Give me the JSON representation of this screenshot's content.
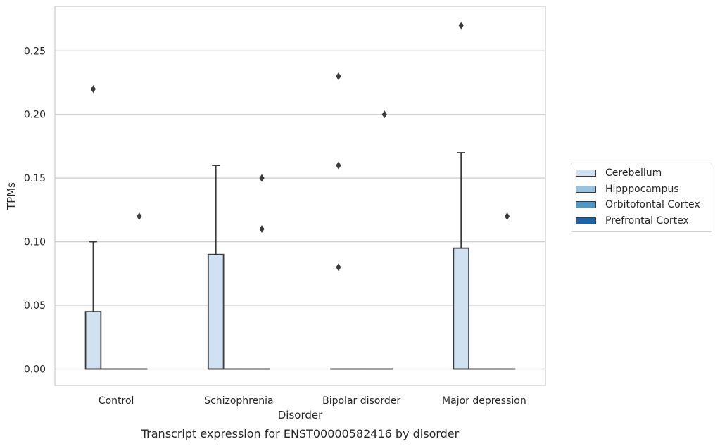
{
  "chart_data": {
    "type": "box",
    "title": "",
    "caption": "Transcript expression for ENST00000582416 by disorder",
    "xlabel": "Disorder",
    "ylabel": "TPMs",
    "ylim": [
      -0.013,
      0.285
    ],
    "yticks": [
      "0.00",
      "0.05",
      "0.10",
      "0.15",
      "0.20",
      "0.25"
    ],
    "categories": [
      "Control",
      "Schizophrenia",
      "Bipolar disorder",
      "Major depression"
    ],
    "grid": true,
    "legend_position": "right",
    "series": [
      {
        "name": "Cerebellum",
        "color": "#d0e1f2",
        "boxes": [
          {
            "q1": 0.0,
            "median": 0.0,
            "q3": 0.045,
            "whisker_low": 0.0,
            "whisker_high": 0.1,
            "outliers": [
              0.22
            ]
          },
          {
            "q1": 0.0,
            "median": 0.0,
            "q3": 0.09,
            "whisker_low": 0.0,
            "whisker_high": 0.16,
            "outliers": []
          },
          {
            "q1": 0.0,
            "median": 0.0,
            "q3": 0.0,
            "whisker_low": 0.0,
            "whisker_high": 0.0,
            "outliers": [
              0.08,
              0.16,
              0.23
            ]
          },
          {
            "q1": 0.0,
            "median": 0.0,
            "q3": 0.095,
            "whisker_low": 0.0,
            "whisker_high": 0.17,
            "outliers": [
              0.27
            ]
          }
        ]
      },
      {
        "name": "Hipppocampus",
        "color": "#94c4df",
        "boxes": [
          {
            "q1": 0.0,
            "median": 0.0,
            "q3": 0.0,
            "whisker_low": 0.0,
            "whisker_high": 0.0,
            "outliers": []
          },
          {
            "q1": 0.0,
            "median": 0.0,
            "q3": 0.0,
            "whisker_low": 0.0,
            "whisker_high": 0.0,
            "outliers": []
          },
          {
            "q1": 0.0,
            "median": 0.0,
            "q3": 0.0,
            "whisker_low": 0.0,
            "whisker_high": 0.0,
            "outliers": []
          },
          {
            "q1": 0.0,
            "median": 0.0,
            "q3": 0.0,
            "whisker_low": 0.0,
            "whisker_high": 0.0,
            "outliers": []
          }
        ]
      },
      {
        "name": "Orbitofontal Cortex",
        "color": "#4a98c9",
        "boxes": [
          {
            "q1": 0.0,
            "median": 0.0,
            "q3": 0.0,
            "whisker_low": 0.0,
            "whisker_high": 0.0,
            "outliers": []
          },
          {
            "q1": 0.0,
            "median": 0.0,
            "q3": 0.0,
            "whisker_low": 0.0,
            "whisker_high": 0.0,
            "outliers": []
          },
          {
            "q1": 0.0,
            "median": 0.0,
            "q3": 0.0,
            "whisker_low": 0.0,
            "whisker_high": 0.0,
            "outliers": []
          },
          {
            "q1": 0.0,
            "median": 0.0,
            "q3": 0.0,
            "whisker_low": 0.0,
            "whisker_high": 0.0,
            "outliers": []
          }
        ]
      },
      {
        "name": "Prefrontal Cortex",
        "color": "#1764ab",
        "boxes": [
          {
            "q1": 0.0,
            "median": 0.0,
            "q3": 0.0,
            "whisker_low": 0.0,
            "whisker_high": 0.0,
            "outliers": [
              0.12
            ]
          },
          {
            "q1": 0.0,
            "median": 0.0,
            "q3": 0.0,
            "whisker_low": 0.0,
            "whisker_high": 0.0,
            "outliers": [
              0.11,
              0.15
            ]
          },
          {
            "q1": 0.0,
            "median": 0.0,
            "q3": 0.0,
            "whisker_low": 0.0,
            "whisker_high": 0.0,
            "outliers": [
              0.2
            ]
          },
          {
            "q1": 0.0,
            "median": 0.0,
            "q3": 0.0,
            "whisker_low": 0.0,
            "whisker_high": 0.0,
            "outliers": [
              0.12
            ]
          }
        ]
      }
    ]
  }
}
